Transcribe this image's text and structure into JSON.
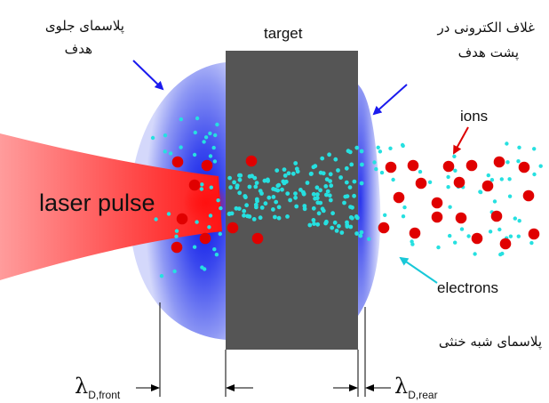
{
  "labels": {
    "front_plasma_line1": "پلاسمای جلوی",
    "front_plasma_line2": "هدف",
    "target": "target",
    "electron_sheath_line1": "غلاف الکترونی در",
    "electron_sheath_line2": "پشت هدف",
    "ions": "ions",
    "laser_pulse": "laser pulse",
    "electrons": "electrons",
    "quasi_neutral_plasma": "پلاسمای شبه خنثی",
    "lambda_symbol": "λ",
    "lambda_front_subscript": "D,front",
    "lambda_rear_subscript": "D,rear"
  },
  "colors": {
    "target": "#555555",
    "laser": "#ff2020",
    "plasma": "#2233ee",
    "ion": "#e00000",
    "electron": "#26e0e0",
    "arrow_blue": "#1a1aee",
    "arrow_red": "#dd0000"
  },
  "icons": {
    "front_arrow": "arrow-down-right-icon",
    "sheath_arrow": "arrow-down-left-icon",
    "ions_arrow": "arrow-down-left-icon",
    "electrons_arrow": "arrow-up-left-icon"
  }
}
